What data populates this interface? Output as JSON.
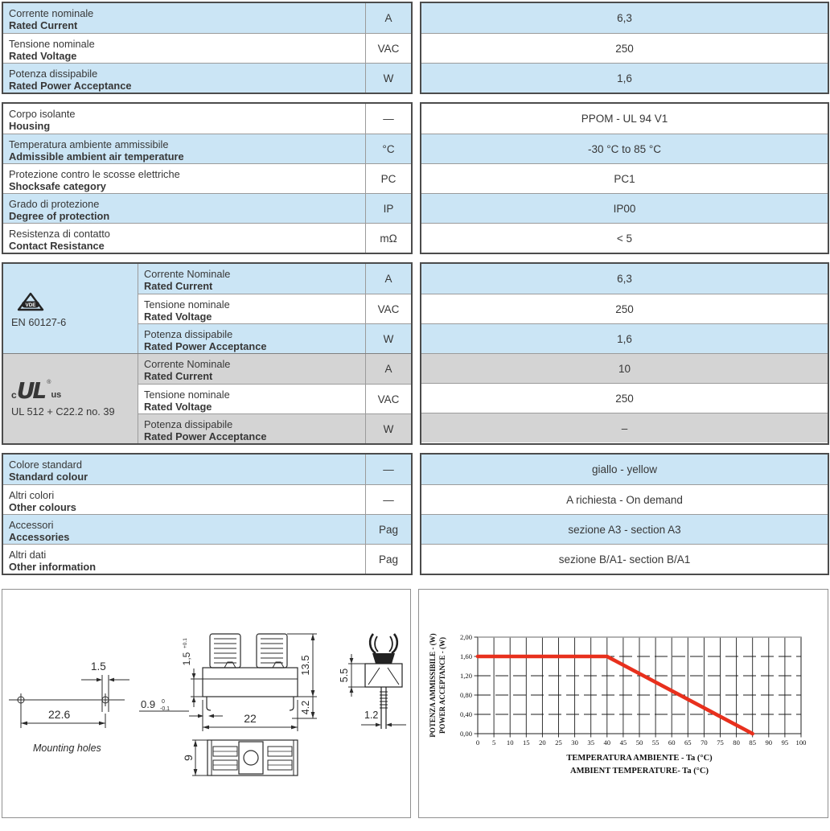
{
  "colors": {
    "row_blue": "#cbe5f5",
    "row_gray": "#d4d4d4",
    "border_dark": "#4c4c4c",
    "line_gray": "#9b9b9b",
    "accent_red": "#e8301d"
  },
  "table1": {
    "rows": [
      {
        "it": "Corrente nominale",
        "en": "Rated Current",
        "unit": "A",
        "value": "6,3",
        "bg": "blue"
      },
      {
        "it": "Tensione nominale",
        "en": "Rated Voltage",
        "unit": "VAC",
        "value": "250",
        "bg": "white"
      },
      {
        "it": "Potenza dissipabile",
        "en": "Rated Power Acceptance",
        "unit": "W",
        "value": "1,6",
        "bg": "blue"
      }
    ]
  },
  "table2": {
    "rows": [
      {
        "it": "Corpo isolante",
        "en": "Housing",
        "unit": "—",
        "value": "PPOM - UL 94 V1",
        "bg": "white"
      },
      {
        "it": "Temperatura ambiente ammissibile",
        "en": "Admissible ambient air temperature",
        "unit": "°C",
        "value": "-30 °C to 85 °C",
        "bg": "blue"
      },
      {
        "it": "Protezione contro le scosse elettriche",
        "en": "Shocksafe category",
        "unit": "PC",
        "value": "PC1",
        "bg": "white"
      },
      {
        "it": "Grado di protezione",
        "en": "Degree of protection",
        "unit": "IP",
        "value": "IP00",
        "bg": "blue"
      },
      {
        "it": "Resistenza di contatto",
        "en": "Contact Resistance",
        "unit": "mΩ",
        "value": "< 5",
        "bg": "white"
      }
    ]
  },
  "table3": {
    "groups": [
      {
        "logo": "vde",
        "logo_text": {
          "mark": "VDE"
        },
        "standard": "EN 60127-6",
        "cell_bg": "blue",
        "rows": [
          {
            "it": "Corrente Nominale",
            "en": "Rated Current",
            "unit": "A",
            "value": "6,3",
            "bg": "blue"
          },
          {
            "it": "Tensione nominale",
            "en": "Rated Voltage",
            "unit": "VAC",
            "value": "250",
            "bg": "white"
          },
          {
            "it": "Potenza dissipabile",
            "en": "Rated Power Acceptance",
            "unit": "W",
            "value": "1,6",
            "bg": "blue"
          }
        ]
      },
      {
        "logo": "ul",
        "logo_text": {
          "prefix": "c",
          "mark": "UL",
          "reg": "®",
          "suffix": "us"
        },
        "standard": "UL 512 + C22.2 no. 39",
        "cell_bg": "gray",
        "rows": [
          {
            "it": "Corrente Nominale",
            "en": "Rated Current",
            "unit": "A",
            "value": "10",
            "bg": "gray"
          },
          {
            "it": "Tensione nominale",
            "en": "Rated Voltage",
            "unit": "VAC",
            "value": "250",
            "bg": "white"
          },
          {
            "it": "Potenza dissipabile",
            "en": "Rated Power Acceptance",
            "unit": "W",
            "value": "–",
            "bg": "gray"
          }
        ]
      }
    ]
  },
  "table4": {
    "rows": [
      {
        "it": "Colore standard",
        "en": "Standard colour",
        "unit": "—",
        "value": "giallo - yellow",
        "bg": "blue"
      },
      {
        "it": "Altri colori",
        "en": "Other colours",
        "unit": "—",
        "value": "A richiesta - On demand",
        "bg": "white"
      },
      {
        "it": "Accessori",
        "en": "Accessories",
        "unit": "Pag",
        "value": "sezione A3 - section A3",
        "bg": "blue"
      },
      {
        "it": "Altri dati",
        "en": "Other information",
        "unit": "Pag",
        "value": "sezione B/A1- section B/A1",
        "bg": "white"
      }
    ]
  },
  "drawing": {
    "mounting_label": "Mounting holes",
    "dims": {
      "hole_pitch": "22.6",
      "hole_width": "1.5",
      "pin_width": "0.9",
      "pin_width_tol_hi": "0",
      "pin_width_tol_lo": "-0.1",
      "pin_offset": "1,5",
      "pin_offset_tol": "+0.1",
      "height": "13.5",
      "pin_length": "4.2",
      "body_width": "22",
      "body_depth": "9",
      "clip_height": "5.5",
      "terminal_width": "1.2"
    }
  },
  "chart_data": {
    "type": "line",
    "xlabel_lines": [
      "TEMPERATURA AMBIENTE - Ta (°C)",
      "AMBIENT TEMPERATURE- Ta (°C)"
    ],
    "ylabel_lines": [
      "POTENZA AMMISSIBILE - (W)",
      "POWER ACCEPTANCE - (W)"
    ],
    "xlim": [
      0,
      100
    ],
    "ylim": [
      0,
      2
    ],
    "x_ticks": [
      0,
      5,
      10,
      15,
      20,
      25,
      30,
      35,
      40,
      45,
      50,
      55,
      60,
      65,
      70,
      75,
      80,
      85,
      90,
      95,
      100
    ],
    "y_tick_values": [
      0,
      0.4,
      0.8,
      1.2,
      1.6,
      2
    ],
    "y_tick_labels": [
      "0,00",
      "0,40",
      "0,80",
      "1,20",
      "1,60",
      "2,00"
    ],
    "grid": {
      "vertical": "solid",
      "horizontal": "dashed"
    },
    "legend": "none",
    "series": [
      {
        "name": "power-acceptance-derating",
        "color": "#e8301d",
        "points": [
          [
            0,
            1.6
          ],
          [
            40,
            1.6
          ],
          [
            85,
            0
          ]
        ]
      }
    ]
  }
}
